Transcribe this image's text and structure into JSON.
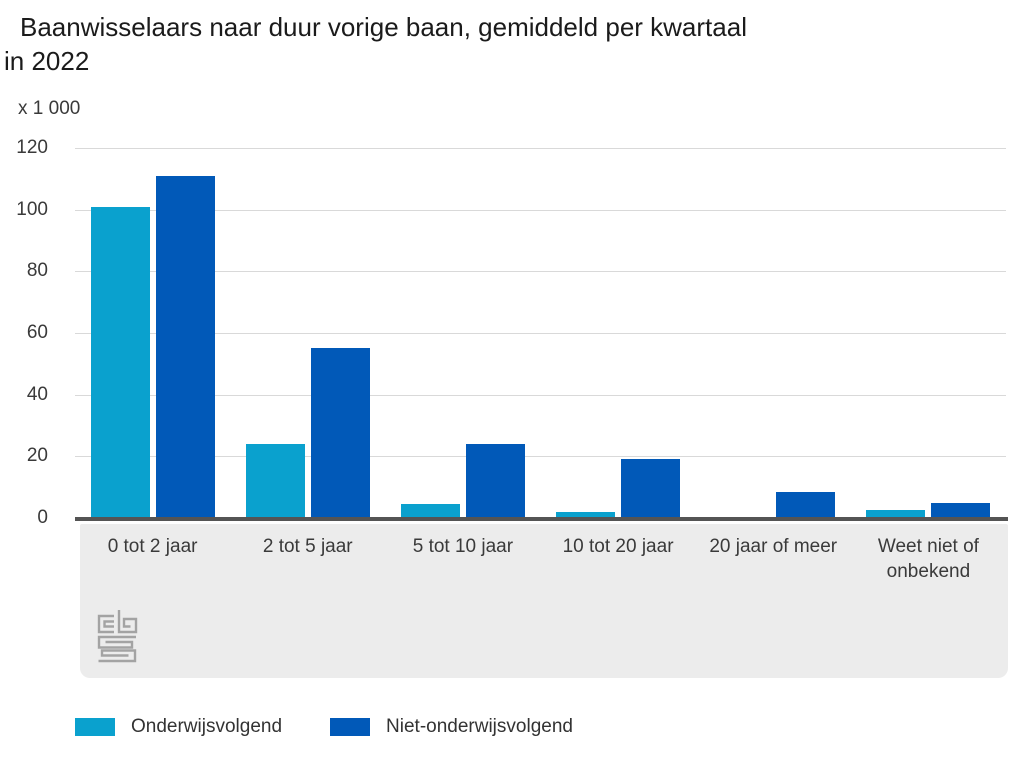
{
  "title": "Baanwisselaars naar duur vorige baan, gemiddeld per kwartaal in 2022",
  "title_lines": [
    "Baanwisselaars naar duur vorige baan, gemiddeld per kwartaal",
    "in 2022"
  ],
  "unit_label": "x 1 000",
  "logo_name": "cbs-logo",
  "colors": {
    "series_light": "#0aa1ce",
    "series_dark": "#0159b8",
    "gridline": "#d9d9d9",
    "axis_line": "#545454",
    "axis_band": "#ececec",
    "title_text": "#1b1b1b",
    "label_text": "#3a3a3a",
    "logo_stroke": "#a3a3a3"
  },
  "chart_data": {
    "type": "bar",
    "title": "Baanwisselaars naar duur vorige baan, gemiddeld per kwartaal in 2022",
    "unit": "x 1 000",
    "xlabel": "",
    "ylabel": "x 1 000",
    "categories": [
      "0 tot 2 jaar",
      "2 tot 5 jaar",
      "5 tot 10 jaar",
      "10 tot 20 jaar",
      "20 jaar of meer",
      "Weet niet of onbekend"
    ],
    "series": [
      {
        "name": "Onderwijsvolgend",
        "color": "#0aa1ce",
        "values": [
          101,
          24,
          4.5,
          2,
          0,
          2.5
        ]
      },
      {
        "name": "Niet-onderwijsvolgend",
        "color": "#0159b8",
        "values": [
          111,
          55,
          24,
          19,
          8.5,
          5
        ]
      }
    ],
    "ylim": [
      0,
      120
    ],
    "ytick_step": 20,
    "yticks": [
      0,
      20,
      40,
      60,
      80,
      100,
      120
    ],
    "grid": true,
    "legend_position": "bottom"
  }
}
